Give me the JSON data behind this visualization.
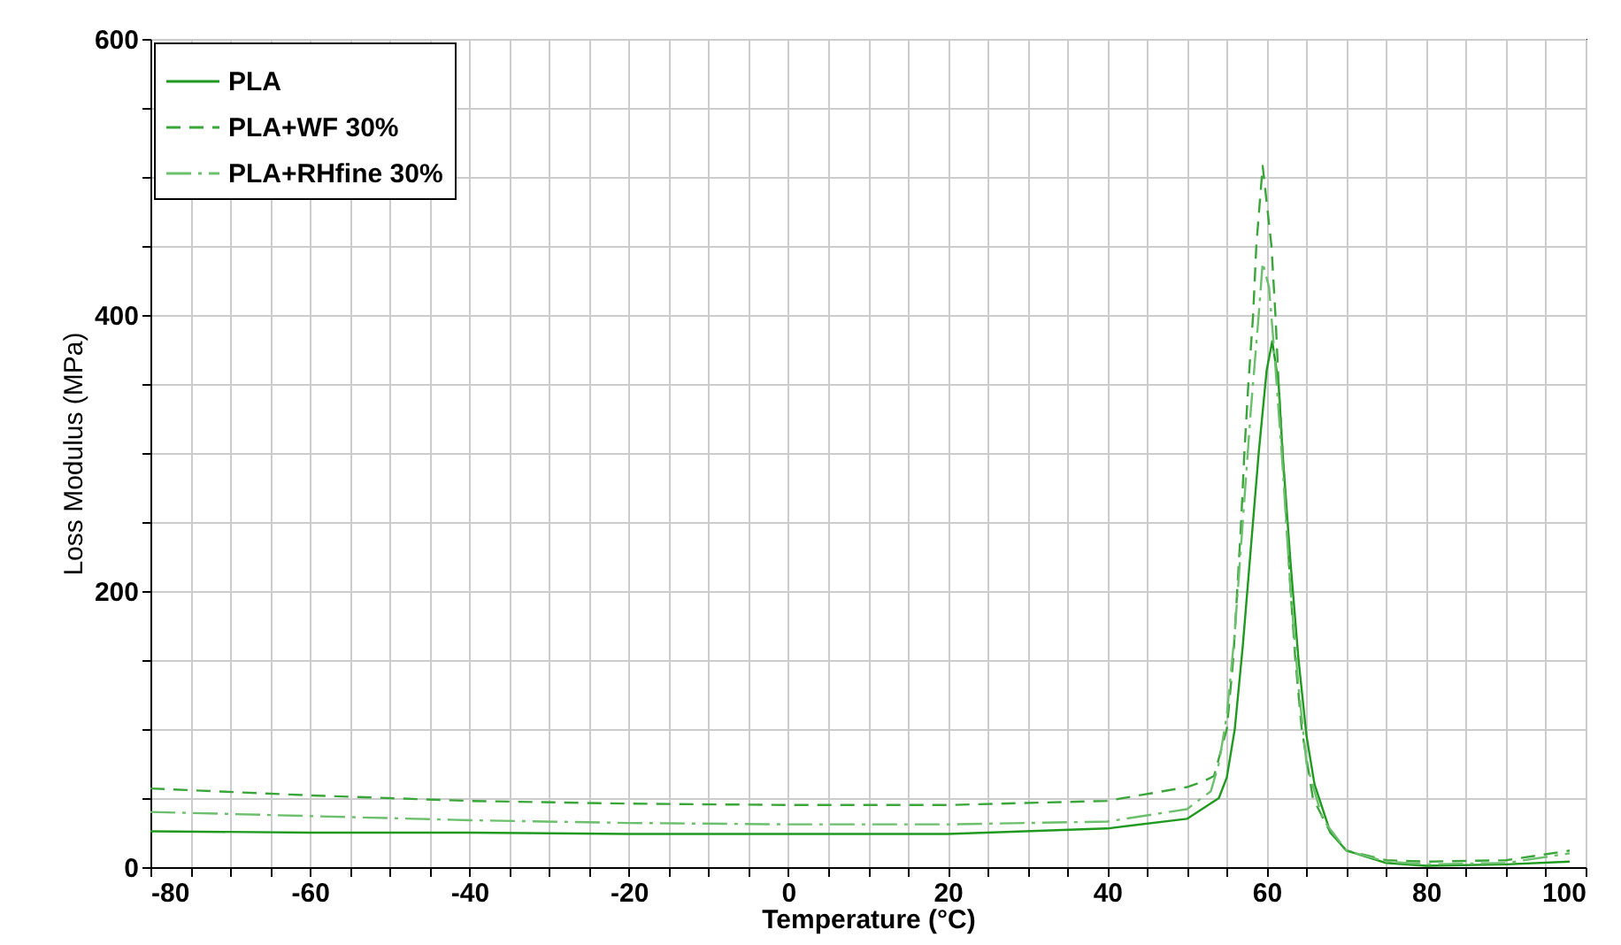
{
  "chart_data": {
    "type": "line",
    "xlabel": "Temperature (°C)",
    "ylabel": "Loss Modulus (MPa)",
    "xlim": [
      -80,
      100
    ],
    "ylim": [
      0,
      600
    ],
    "xticks": [
      -80,
      {
        "value": -75,
        "label": null
      },
      {
        "value": -70,
        "label": null
      },
      {
        "value": -65,
        "label": null
      },
      -60,
      {
        "value": -55,
        "label": null
      },
      {
        "value": -50,
        "label": null
      },
      {
        "value": -45,
        "label": null
      },
      -40,
      {
        "value": -35,
        "label": null
      },
      {
        "value": -30,
        "label": null
      },
      {
        "value": -25,
        "label": null
      },
      -20,
      {
        "value": -15,
        "label": null
      },
      {
        "value": -10,
        "label": null
      },
      {
        "value": -5,
        "label": null
      },
      0,
      {
        "value": 5,
        "label": null
      },
      {
        "value": 10,
        "label": null
      },
      {
        "value": 15,
        "label": null
      },
      20,
      {
        "value": 25,
        "label": null
      },
      {
        "value": 30,
        "label": null
      },
      {
        "value": 35,
        "label": null
      },
      40,
      {
        "value": 45,
        "label": null
      },
      {
        "value": 50,
        "label": null
      },
      {
        "value": 55,
        "label": null
      },
      60,
      {
        "value": 65,
        "label": null
      },
      {
        "value": 70,
        "label": null
      },
      {
        "value": 75,
        "label": null
      },
      80,
      {
        "value": 85,
        "label": null
      },
      {
        "value": 90,
        "label": null
      },
      {
        "value": 95,
        "label": null
      },
      100
    ],
    "yticks": [
      0,
      {
        "value": 50,
        "label": null
      },
      {
        "value": 100,
        "label": null
      },
      {
        "value": 150,
        "label": null
      },
      200,
      {
        "value": 250,
        "label": null
      },
      {
        "value": 300,
        "label": null
      },
      {
        "value": 350,
        "label": null
      },
      400,
      {
        "value": 450,
        "label": null
      },
      {
        "value": 500,
        "label": null
      },
      {
        "value": 550,
        "label": null
      },
      600
    ],
    "grid": true,
    "legend": "top left",
    "marker": "none",
    "series": [
      {
        "name": "PLA",
        "color": "#1f9a1f",
        "line_style": "solid",
        "x": [
          -80,
          -60,
          -40,
          -20,
          0,
          20,
          40,
          50,
          54,
          55,
          56,
          57,
          58,
          59,
          60,
          60.7,
          61.5,
          62,
          63,
          64,
          65,
          66,
          68,
          70,
          75,
          80,
          90,
          98
        ],
        "values": [
          26,
          25,
          25,
          24,
          24,
          24,
          28,
          35,
          50,
          65,
          100,
          160,
          230,
          300,
          360,
          381,
          350,
          300,
          220,
          150,
          95,
          60,
          25,
          12,
          3,
          1,
          2,
          4
        ]
      },
      {
        "name": "PLA+WF 30%",
        "color": "#3aa63a",
        "line_style": "dashed",
        "x": [
          -80,
          -60,
          -40,
          -20,
          0,
          20,
          40,
          50,
          52,
          53.4,
          55,
          55.8,
          56.3,
          56.8,
          57.2,
          57.7,
          58.3,
          58.7,
          59.5,
          60.6,
          61.1,
          61.5,
          62,
          62.5,
          63,
          63.6,
          64.4,
          65.8,
          68,
          70,
          75,
          80,
          90,
          98
        ],
        "values": [
          57,
          52,
          48,
          46,
          45,
          45,
          48,
          58,
          62,
          66,
          100,
          150,
          200,
          250,
          300,
          350,
          400,
          450,
          508,
          450,
          400,
          350,
          300,
          250,
          200,
          150,
          100,
          50,
          25,
          12,
          5,
          4,
          5,
          12
        ]
      },
      {
        "name": "PLA+RHfine 30%",
        "color": "#6cbf6c",
        "line_style": "dashdot",
        "x": [
          -80,
          -60,
          -40,
          -20,
          0,
          20,
          40,
          50,
          53,
          54,
          55,
          56,
          57,
          58,
          59,
          59.5,
          60.3,
          61,
          62,
          63,
          64,
          65,
          67,
          70,
          75,
          80,
          90,
          98
        ],
        "values": [
          40,
          37,
          34,
          32,
          31,
          31,
          33,
          42,
          55,
          75,
          110,
          170,
          250,
          330,
          400,
          438,
          420,
          370,
          290,
          200,
          130,
          75,
          35,
          12,
          4,
          2,
          3,
          10
        ]
      }
    ]
  }
}
